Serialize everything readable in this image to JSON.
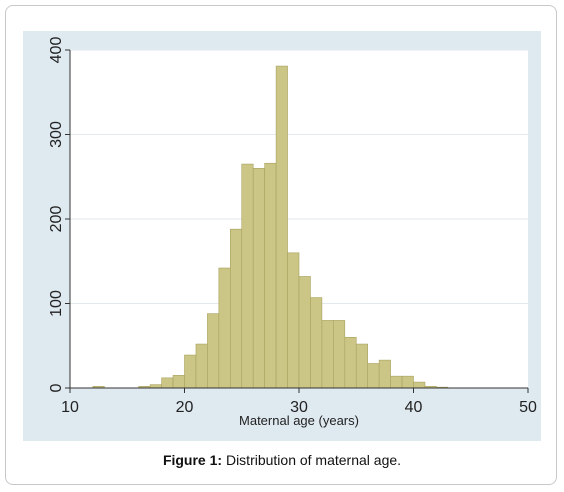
{
  "figure": {
    "caption_label": "Figure 1:",
    "caption_text": " Distribution of maternal age."
  },
  "chart_data": {
    "type": "bar",
    "title": "",
    "xlabel": "Maternal age (years)",
    "ylabel": "",
    "xlim": [
      10,
      50
    ],
    "ylim": [
      0,
      400
    ],
    "xticks": [
      10,
      20,
      30,
      40,
      50
    ],
    "yticks": [
      0,
      100,
      200,
      300,
      400
    ],
    "grid": true,
    "bin_width": 1,
    "bins": [
      {
        "start": 12,
        "value": 2
      },
      {
        "start": 13,
        "value": 0
      },
      {
        "start": 14,
        "value": 0
      },
      {
        "start": 15,
        "value": 0
      },
      {
        "start": 16,
        "value": 2
      },
      {
        "start": 17,
        "value": 4
      },
      {
        "start": 18,
        "value": 12
      },
      {
        "start": 19,
        "value": 15
      },
      {
        "start": 20,
        "value": 39
      },
      {
        "start": 21,
        "value": 52
      },
      {
        "start": 22,
        "value": 88
      },
      {
        "start": 23,
        "value": 142
      },
      {
        "start": 24,
        "value": 188
      },
      {
        "start": 25,
        "value": 265
      },
      {
        "start": 26,
        "value": 260
      },
      {
        "start": 27,
        "value": 266
      },
      {
        "start": 28,
        "value": 381
      },
      {
        "start": 29,
        "value": 160
      },
      {
        "start": 30,
        "value": 132
      },
      {
        "start": 31,
        "value": 107
      },
      {
        "start": 32,
        "value": 80
      },
      {
        "start": 33,
        "value": 80
      },
      {
        "start": 34,
        "value": 60
      },
      {
        "start": 35,
        "value": 52
      },
      {
        "start": 36,
        "value": 29
      },
      {
        "start": 37,
        "value": 33
      },
      {
        "start": 38,
        "value": 14
      },
      {
        "start": 39,
        "value": 14
      },
      {
        "start": 40,
        "value": 7
      },
      {
        "start": 41,
        "value": 2
      },
      {
        "start": 42,
        "value": 1
      }
    ],
    "colors": {
      "bar_fill": "#cbc586",
      "bar_stroke": "#a8a35f",
      "plot_panel": "#dfe9f0",
      "plot_area": "#ffffff",
      "gridline": "#e3eaee",
      "axis": "#333333"
    }
  }
}
